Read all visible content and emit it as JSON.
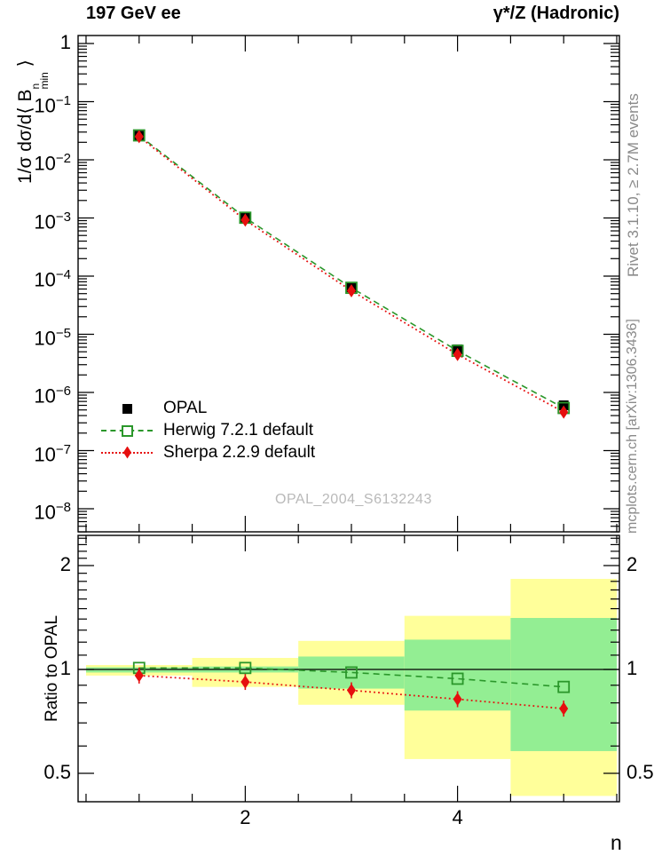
{
  "header": {
    "title_left": "197 GeV ee",
    "title_right": "γ*/Z (Hadronic)"
  },
  "side_notes": {
    "top_rotated": "Rivet 3.1.10, ≥ 2.7M events",
    "bottom_rotated": "mcplots.cern.ch [arXiv:1306.3436]"
  },
  "watermark": "OPAL_2004_S6132243",
  "colors": {
    "opal": "#000000",
    "herwig": "#2b972b",
    "sherpa": "#e60f0f",
    "band_yellow": "#ffff9a",
    "band_green": "#93ee93",
    "gray_text": "#8a8a8a",
    "watermark_gray": "#b9b9b9"
  },
  "legend": [
    {
      "label": "OPAL",
      "marker": "filled-square",
      "color": "#000000",
      "line": "none"
    },
    {
      "label": "Herwig 7.2.1 default",
      "marker": "open-square",
      "color": "#2b972b",
      "line": "dashed"
    },
    {
      "label": "Sherpa 2.2.9 default",
      "marker": "filled-diamond",
      "color": "#e60f0f",
      "line": "dotted"
    }
  ],
  "axes": {
    "ylabel_pre": "1/σ dσ/d⟨ B",
    "ylabel_sup": "n",
    "ylabel_sub": "min",
    "ylabel_post": " ⟩",
    "ratio_ylabel": "Ratio to OPAL",
    "xlabel": "n",
    "x_range": [
      0.425,
      5.525
    ],
    "x_minor_tick_step": 0.5,
    "x_major_ticks": [
      {
        "value": 2,
        "label": "2"
      },
      {
        "value": 4,
        "label": "4"
      }
    ],
    "top_y_tick_exponents": [
      0,
      -1,
      -2,
      -3,
      -4,
      -5,
      -6,
      -7,
      -8
    ],
    "top_ylim": [
      3.9e-09,
      1.37
    ],
    "ratio_y_ticks": [
      {
        "value": 0.5,
        "label": "0.5"
      },
      {
        "value": 1,
        "label": "1"
      },
      {
        "value": 2,
        "label": "2"
      }
    ],
    "ratio_ylim": [
      0.414,
      2.447
    ]
  },
  "chart_data": [
    {
      "type": "line",
      "title": "197 GeV ee — γ*/Z (Hadronic)",
      "xlabel": "n",
      "ylabel": "1/σ dσ/d⟨B^n_min⟩",
      "yscale": "log",
      "ylim": [
        3.9e-09,
        1.37
      ],
      "x": [
        1,
        2,
        3,
        4,
        5
      ],
      "series": [
        {
          "name": "OPAL",
          "marker": "filled-square",
          "color": "#000000",
          "line": "none",
          "values": [
            0.026,
            0.001,
            6.4e-05,
            5.5e-06,
            6e-07
          ]
        },
        {
          "name": "Herwig 7.2.1 default",
          "marker": "open-square",
          "color": "#2b972b",
          "line": "dashed",
          "values": [
            0.0263,
            0.00101,
            6.3e-05,
            5.2e-06,
            5.4e-07
          ]
        },
        {
          "name": "Sherpa 2.2.9 default",
          "marker": "filled-diamond",
          "color": "#e60f0f",
          "line": "dotted",
          "values": [
            0.025,
            0.00092,
            5.6e-05,
            4.5e-06,
            4.6e-07
          ]
        }
      ]
    },
    {
      "type": "line",
      "ylabel": "Ratio to OPAL",
      "yscale": "log",
      "ylim": [
        0.414,
        2.447
      ],
      "x": [
        1,
        2,
        3,
        4,
        5
      ],
      "reference_line": 1,
      "series": [
        {
          "name": "Herwig 7.2.1 default",
          "marker": "open-square",
          "color": "#2b972b",
          "line": "dashed",
          "values": [
            1.01,
            1.01,
            0.98,
            0.94,
            0.89
          ]
        },
        {
          "name": "Sherpa 2.2.9 default",
          "marker": "filled-diamond",
          "color": "#e60f0f",
          "line": "dotted",
          "values": [
            0.96,
            0.92,
            0.87,
            0.82,
            0.77
          ]
        }
      ],
      "bands": [
        {
          "x0": 0.5,
          "x1": 1.5,
          "outer": [
            0.96,
            1.03
          ],
          "inner": [
            0.98,
            1.015
          ]
        },
        {
          "x0": 1.5,
          "x1": 2.5,
          "outer": [
            0.89,
            1.08
          ],
          "inner": [
            0.98,
            1.02
          ]
        },
        {
          "x0": 2.5,
          "x1": 3.5,
          "outer": [
            0.79,
            1.21
          ],
          "inner": [
            0.88,
            1.09
          ]
        },
        {
          "x0": 3.5,
          "x1": 4.5,
          "outer": [
            0.55,
            1.43
          ],
          "inner": [
            0.76,
            1.22
          ]
        },
        {
          "x0": 4.5,
          "x1": 5.5,
          "outer": [
            0.43,
            1.83
          ],
          "inner": [
            0.58,
            1.41
          ]
        }
      ]
    }
  ]
}
